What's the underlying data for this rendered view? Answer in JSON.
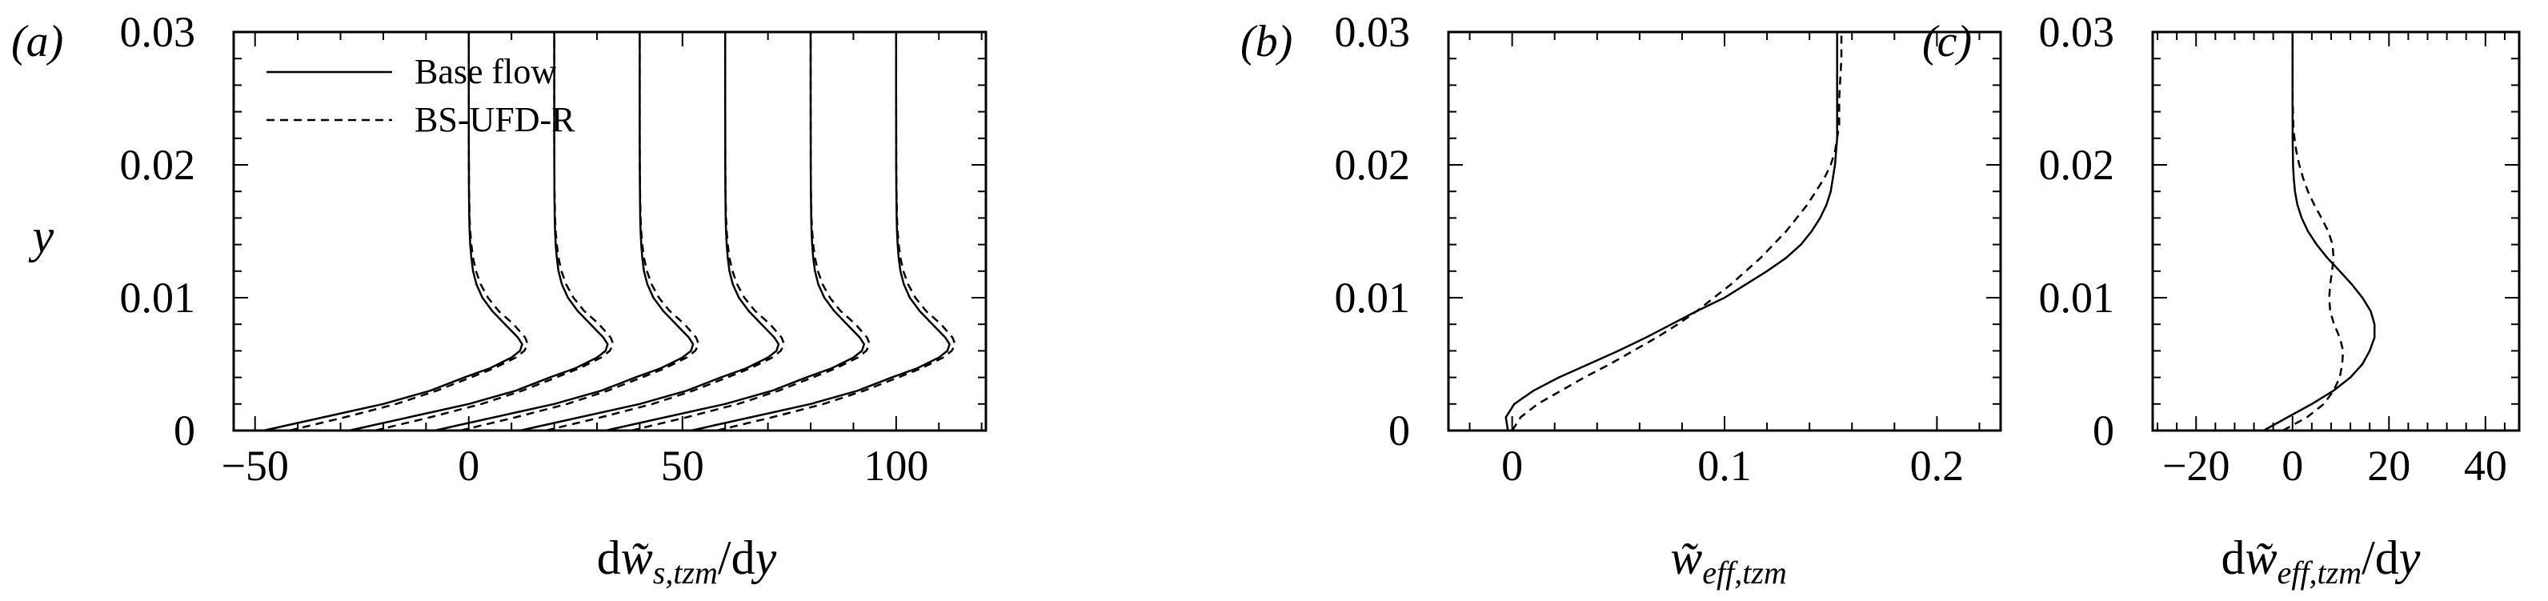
{
  "legend": {
    "base_label": "Base flow",
    "model_label": "BS-UFD-R"
  },
  "ylabel": "y",
  "chart_data": [
    {
      "panel": "(a)",
      "type": "line",
      "xlabel": "dw̃s,tzm/dy",
      "xlabel_parts": [
        "d",
        "w̃",
        "s,tzm",
        "/d",
        "y"
      ],
      "ylabel": "y",
      "xlim": [
        -55,
        121
      ],
      "ylim": [
        0,
        0.03
      ],
      "xticks": [
        -50,
        0,
        50,
        100
      ],
      "xtick_labels": [
        "−50",
        "0",
        "50",
        "100"
      ],
      "yticks": [
        0,
        0.01,
        0.02,
        0.03
      ],
      "ytick_labels": [
        "0",
        "0.01",
        "0.02",
        "0.03"
      ],
      "legend_position": "top-left",
      "note": "six profiles each offset by 20 along x",
      "offsets": [
        0,
        20,
        40,
        60,
        80,
        100
      ],
      "series": [
        {
          "name": "Base flow",
          "style": "solid",
          "y": [
            0,
            0.001,
            0.002,
            0.003,
            0.004,
            0.0047,
            0.0055,
            0.006,
            0.0065,
            0.007,
            0.008,
            0.009,
            0.01,
            0.011,
            0.012,
            0.013,
            0.014,
            0.015,
            0.016,
            0.018,
            0.02,
            0.022,
            0.025,
            0.028,
            0.03
          ],
          "x": [
            -48,
            -34,
            -20,
            -9,
            -1,
            5,
            10,
            12,
            12.5,
            11.5,
            8.5,
            5.5,
            3.2,
            1.8,
            1.0,
            0.6,
            0.35,
            0.2,
            0.12,
            0.05,
            0.02,
            0.01,
            0,
            0,
            0
          ]
        },
        {
          "name": "BS-UFD-R",
          "style": "dashed",
          "y": [
            0,
            0.001,
            0.002,
            0.003,
            0.004,
            0.0047,
            0.0055,
            0.006,
            0.0065,
            0.007,
            0.008,
            0.009,
            0.01,
            0.011,
            0.012,
            0.013,
            0.014,
            0.015,
            0.016,
            0.018,
            0.02,
            0.022,
            0.025,
            0.028,
            0.03
          ],
          "x": [
            -42,
            -29,
            -17,
            -7.5,
            0.5,
            6,
            11,
            13,
            13.8,
            13.2,
            10.5,
            7,
            4.5,
            2.8,
            1.7,
            1.0,
            0.6,
            0.35,
            0.2,
            0.08,
            0.03,
            0.01,
            0,
            0,
            0
          ]
        }
      ]
    },
    {
      "panel": "(b)",
      "type": "line",
      "xlabel": "w̃eff,tzm",
      "xlabel_parts": [
        "w̃",
        "eff,tzm"
      ],
      "ylabel": "y",
      "xlim": [
        -0.03,
        0.23
      ],
      "ylim": [
        0,
        0.03
      ],
      "xticks": [
        0,
        0.1,
        0.2
      ],
      "xtick_labels": [
        "0",
        "0.1",
        "0.2"
      ],
      "yticks": [
        0,
        0.01,
        0.02,
        0.03
      ],
      "ytick_labels": [
        "0",
        "0.01",
        "0.02",
        "0.03"
      ],
      "series": [
        {
          "name": "Base flow",
          "style": "solid",
          "y": [
            0,
            0.001,
            0.002,
            0.003,
            0.004,
            0.005,
            0.006,
            0.007,
            0.008,
            0.009,
            0.01,
            0.011,
            0.012,
            0.013,
            0.014,
            0.015,
            0.016,
            0.017,
            0.018,
            0.02,
            0.022,
            0.025,
            0.028,
            0.03
          ],
          "x": [
            -0.002,
            -0.003,
            0.001,
            0.01,
            0.022,
            0.036,
            0.05,
            0.063,
            0.075,
            0.087,
            0.1,
            0.11,
            0.12,
            0.129,
            0.136,
            0.141,
            0.145,
            0.148,
            0.15,
            0.152,
            0.153,
            0.153,
            0.153,
            0.153
          ]
        },
        {
          "name": "BS-UFD-R",
          "style": "dashed",
          "y": [
            0,
            0.001,
            0.002,
            0.003,
            0.004,
            0.005,
            0.006,
            0.007,
            0.008,
            0.009,
            0.01,
            0.011,
            0.012,
            0.013,
            0.014,
            0.015,
            0.016,
            0.017,
            0.018,
            0.019,
            0.02,
            0.021,
            0.022,
            0.023,
            0.025,
            0.028,
            0.03
          ],
          "x": [
            0,
            0.004,
            0.012,
            0.023,
            0.034,
            0.046,
            0.057,
            0.068,
            0.078,
            0.087,
            0.095,
            0.103,
            0.11,
            0.117,
            0.123,
            0.129,
            0.134,
            0.139,
            0.143,
            0.147,
            0.15,
            0.152,
            0.153,
            0.154,
            0.154,
            0.155,
            0.155
          ]
        }
      ]
    },
    {
      "panel": "(c)",
      "type": "line",
      "xlabel": "dw̃eff,tzm/dy",
      "xlabel_parts": [
        "d",
        "w̃",
        "eff,tzm",
        "/d",
        "y"
      ],
      "ylabel": "y",
      "xlim": [
        -29,
        47
      ],
      "ylim": [
        0,
        0.03
      ],
      "xticks": [
        -20,
        0,
        20,
        40
      ],
      "xtick_labels": [
        "−20",
        "0",
        "20",
        "40"
      ],
      "yticks": [
        0,
        0.01,
        0.02,
        0.03
      ],
      "ytick_labels": [
        "0",
        "0.01",
        "0.02",
        "0.03"
      ],
      "series": [
        {
          "name": "Base flow",
          "style": "solid",
          "y": [
            0,
            0.001,
            0.002,
            0.003,
            0.004,
            0.005,
            0.006,
            0.007,
            0.008,
            0.009,
            0.01,
            0.011,
            0.012,
            0.013,
            0.014,
            0.015,
            0.016,
            0.017,
            0.018,
            0.019,
            0.02,
            0.022,
            0.025,
            0.03
          ],
          "x": [
            -6,
            -1,
            4,
            8.5,
            12,
            14.5,
            16,
            17,
            17,
            16.2,
            14.5,
            12.3,
            9.8,
            7.2,
            5,
            3.2,
            1.9,
            1,
            0.5,
            0.25,
            0.1,
            0.02,
            0,
            0
          ]
        },
        {
          "name": "BS-UFD-R",
          "style": "dashed",
          "y": [
            0,
            0.001,
            0.002,
            0.003,
            0.004,
            0.005,
            0.006,
            0.007,
            0.008,
            0.009,
            0.01,
            0.011,
            0.012,
            0.013,
            0.014,
            0.015,
            0.016,
            0.017,
            0.018,
            0.019,
            0.02,
            0.021,
            0.022,
            0.023,
            0.025,
            0.03
          ],
          "x": [
            -2,
            3,
            6.5,
            8.5,
            9.8,
            10.3,
            10.5,
            9.8,
            8.6,
            7.8,
            7.6,
            7.8,
            8.2,
            8.5,
            8.3,
            7.4,
            6,
            4.5,
            3.2,
            2.2,
            1.4,
            0.8,
            0.4,
            0.15,
            0.03,
            0
          ]
        }
      ]
    }
  ]
}
